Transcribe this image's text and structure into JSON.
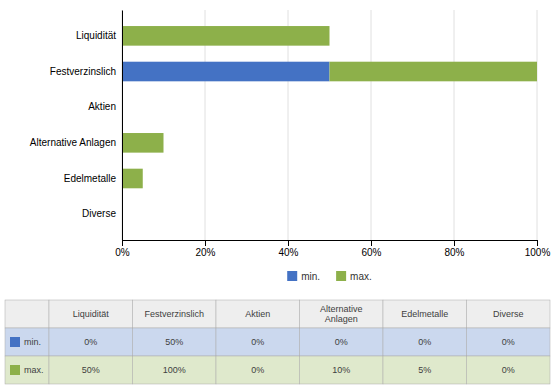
{
  "chart_data": {
    "type": "bar",
    "orientation": "horizontal",
    "stacked": true,
    "categories": [
      "Diverse",
      "Edelmetalle",
      "Alternative Anlagen",
      "Aktien",
      "Festverzinslich",
      "Liquidität"
    ],
    "series": [
      {
        "name": "min.",
        "color": "#4472C4",
        "values": [
          0,
          0,
          0,
          0,
          50,
          0
        ]
      },
      {
        "name": "max.",
        "color": "#8DB04A",
        "values": [
          0,
          5,
          10,
          0,
          50,
          50
        ]
      }
    ],
    "xlim": [
      0,
      100
    ],
    "xticks": [
      {
        "value": 0,
        "label": "0%"
      },
      {
        "value": 20,
        "label": "20%"
      },
      {
        "value": 40,
        "label": "40%"
      },
      {
        "value": 60,
        "label": "60%"
      },
      {
        "value": 80,
        "label": "80%"
      },
      {
        "value": 100,
        "label": "100%"
      }
    ],
    "grid": true,
    "legend": "bottom",
    "table": {
      "columns": [
        "Liquidität",
        "Festverzinslich",
        "Aktien",
        "Alternative Anlagen",
        "Edelmetalle",
        "Diverse"
      ],
      "rows": [
        {
          "name": "min.",
          "color": "#4472C4",
          "values": [
            0,
            50,
            0,
            0,
            0,
            0
          ],
          "value_labels": [
            "0%",
            "50%",
            "0%",
            "0%",
            "0%",
            "0%"
          ]
        },
        {
          "name": "max.",
          "color": "#8DB04A",
          "values": [
            50,
            100,
            0,
            10,
            5,
            0
          ],
          "value_labels": [
            "50%",
            "100%",
            "0%",
            "10%",
            "5%",
            "0%"
          ]
        }
      ]
    }
  }
}
